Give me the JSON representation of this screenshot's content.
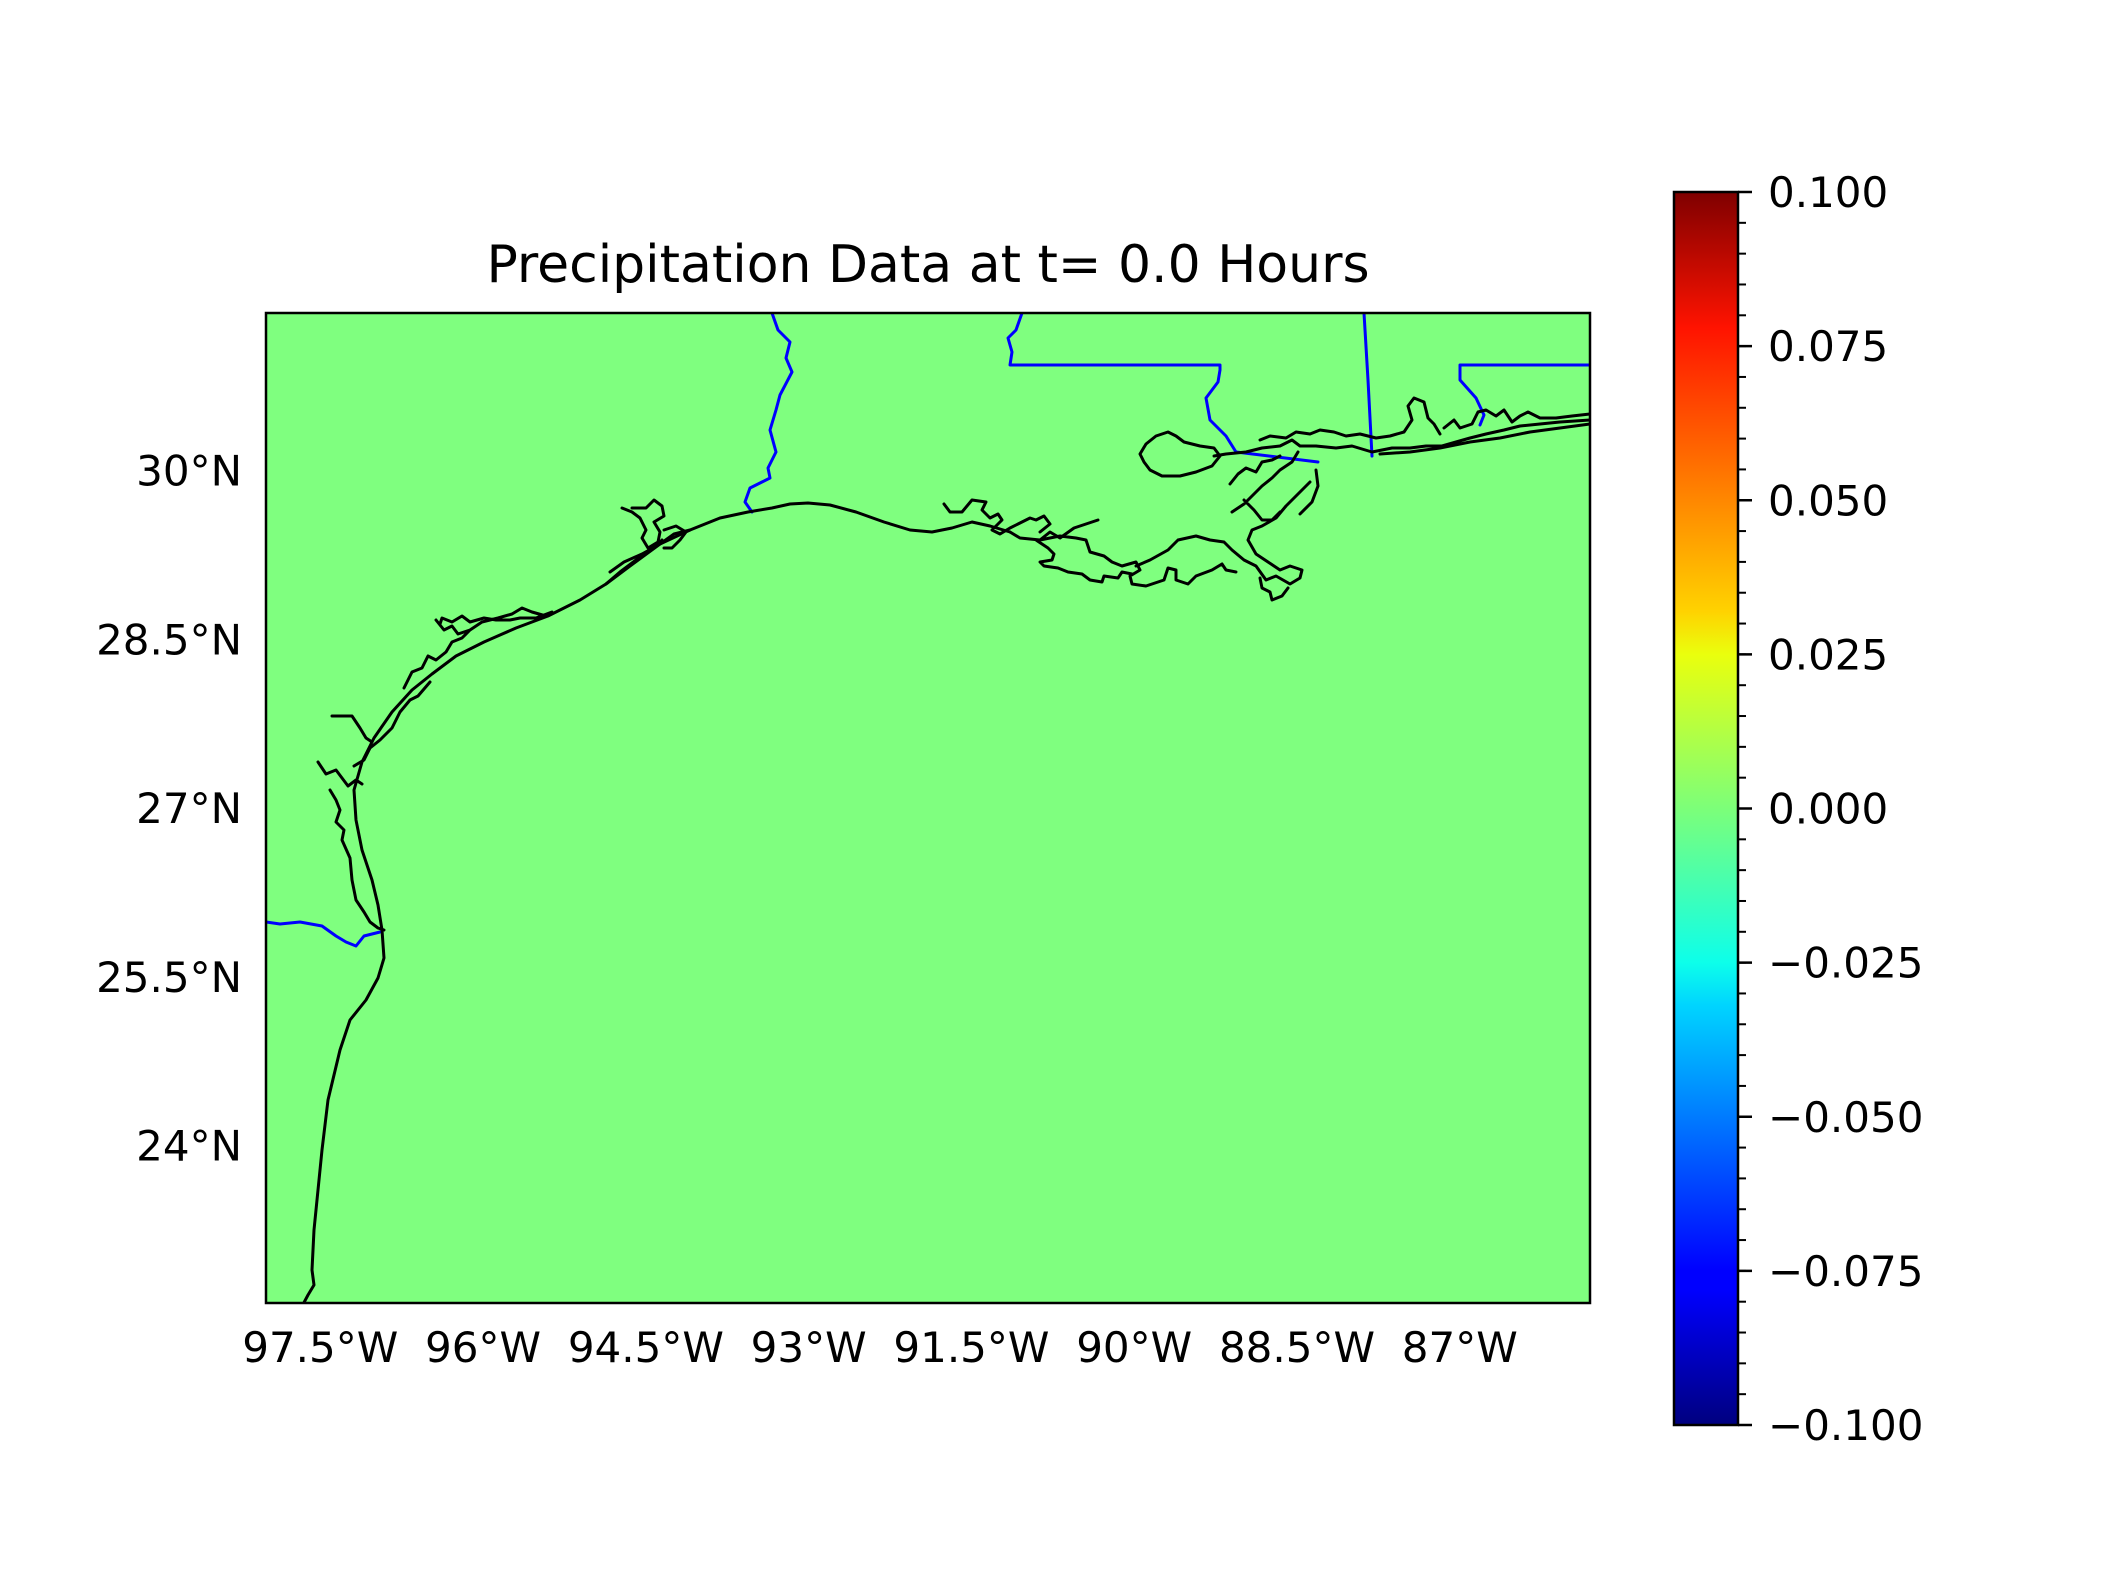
{
  "title": "Precipitation Data at t= 0.0 Hours",
  "map": {
    "fill_color": "#7fff7f",
    "lon_range": [
      -98.0,
      -85.8
    ],
    "lat_range": [
      22.6,
      31.4
    ],
    "lon_ticks": [
      {
        "value": -97.5,
        "label": "97.5°W"
      },
      {
        "value": -96.0,
        "label": "96°W"
      },
      {
        "value": -94.5,
        "label": "94.5°W"
      },
      {
        "value": -93.0,
        "label": "93°W"
      },
      {
        "value": -91.5,
        "label": "91.5°W"
      },
      {
        "value": -90.0,
        "label": "90°W"
      },
      {
        "value": -88.5,
        "label": "88.5°W"
      },
      {
        "value": -87.0,
        "label": "87°W"
      }
    ],
    "lat_ticks": [
      {
        "value": 30.0,
        "label": "30°N"
      },
      {
        "value": 28.5,
        "label": "28.5°N"
      },
      {
        "value": 27.0,
        "label": "27°N"
      },
      {
        "value": 25.5,
        "label": "25.5°N"
      },
      {
        "value": 24.0,
        "label": "24°N"
      }
    ],
    "coastline_color": "#000000",
    "border_color": "#0000ff"
  },
  "colorbar": {
    "min": -0.1,
    "max": 0.1,
    "colormap": "jet",
    "tick_labels": [
      "0.100",
      "0.075",
      "0.050",
      "0.025",
      "0.000",
      "−0.025",
      "−0.050",
      "−0.075",
      "−0.100"
    ],
    "tick_values": [
      0.1,
      0.075,
      0.05,
      0.025,
      0.0,
      -0.025,
      -0.05,
      -0.075,
      -0.1
    ]
  }
}
